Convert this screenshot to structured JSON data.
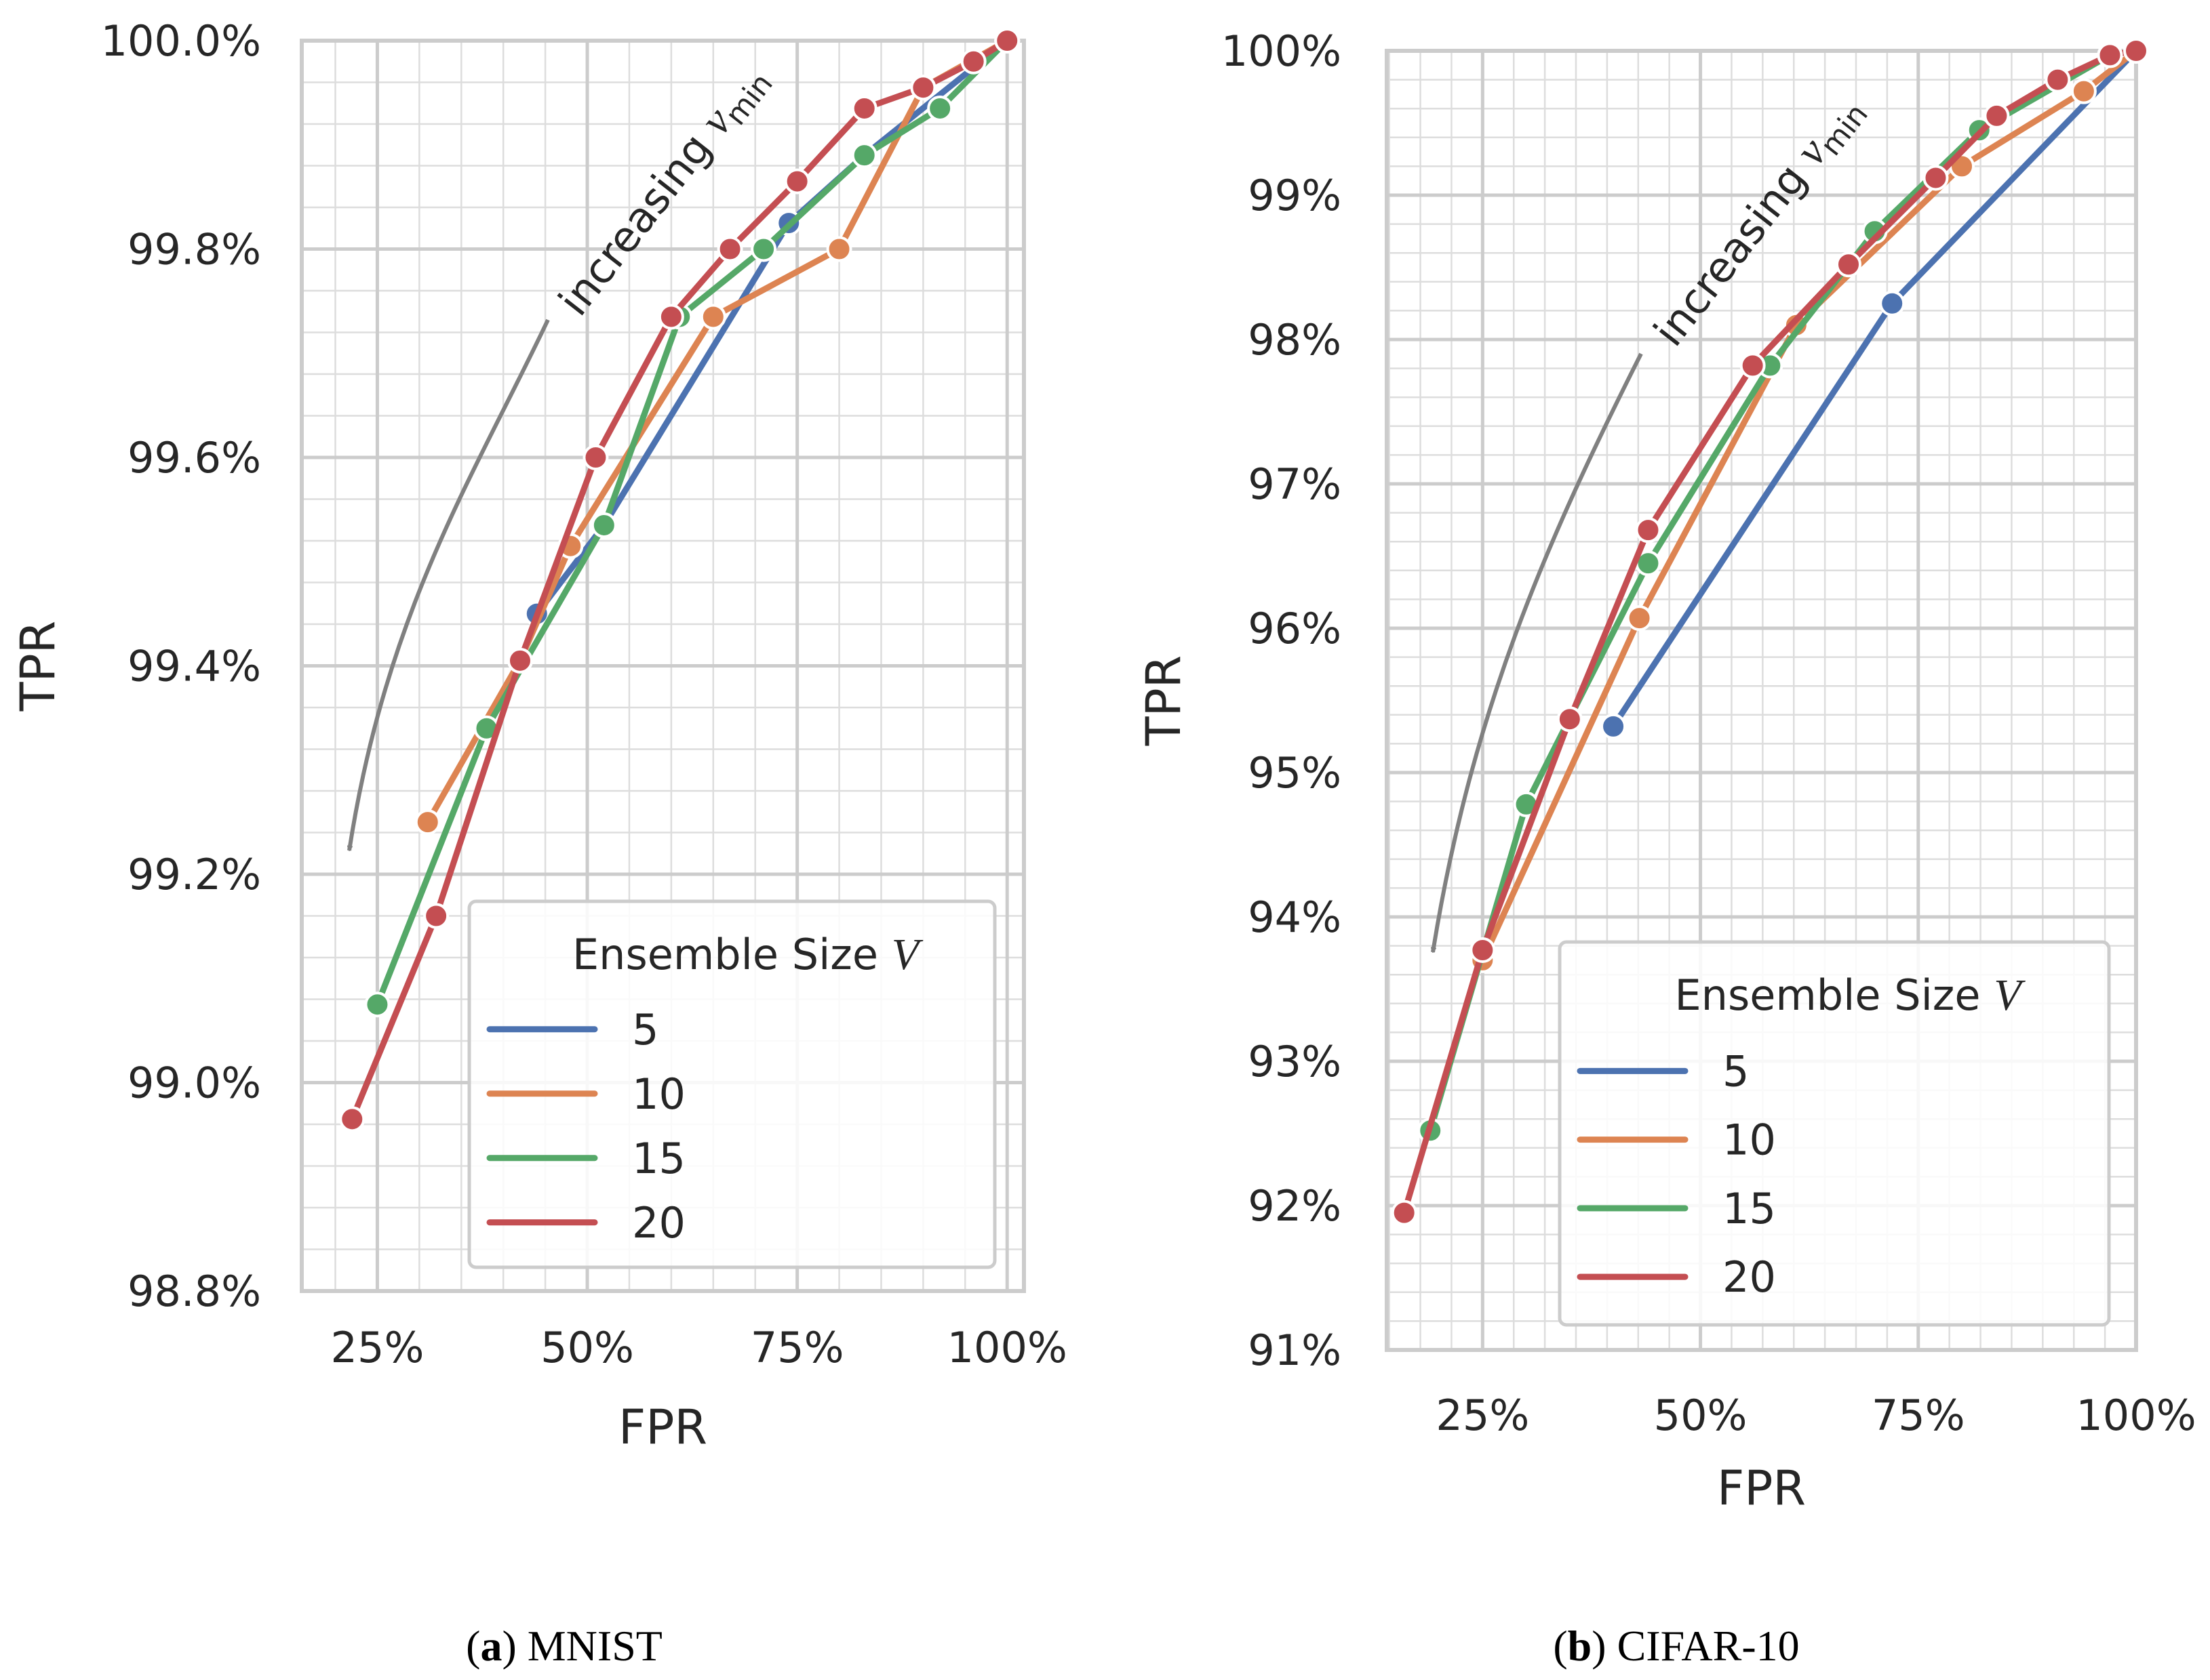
{
  "chart_data": [
    {
      "type": "line",
      "caption_label": "a",
      "caption_text": "MNIST",
      "xlabel": "FPR",
      "ylabel": "TPR",
      "xlim": [
        0.16,
        1.02
      ],
      "ylim": [
        98.8,
        100.0
      ],
      "xticks": [
        0.25,
        0.5,
        0.75,
        1.0
      ],
      "xtick_labels": [
        "25%",
        "50%",
        "75%",
        "100%"
      ],
      "yticks": [
        98.8,
        99.0,
        99.2,
        99.4,
        99.6,
        99.8,
        100.0
      ],
      "ytick_labels": [
        "98.8%",
        "99.0%",
        "99.2%",
        "99.4%",
        "99.6%",
        "99.8%",
        "100.0%"
      ],
      "annotation": {
        "text": "increasing",
        "math_symbol": "v",
        "math_subscript": "min"
      },
      "legend": {
        "title": "Ensemble Size",
        "title_symbol": "V",
        "placement": "lower right"
      },
      "series": [
        {
          "name": "5",
          "color": "#4c72b0",
          "x": [
            0.44,
            0.52,
            0.74,
            0.83,
            1.0
          ],
          "y": [
            99.45,
            99.535,
            99.825,
            99.89,
            100.0
          ]
        },
        {
          "name": "10",
          "color": "#dd8452",
          "x": [
            0.31,
            0.42,
            0.48,
            0.65,
            0.8,
            0.9,
            1.0
          ],
          "y": [
            99.25,
            99.405,
            99.515,
            99.735,
            99.8,
            99.955,
            100.0
          ]
        },
        {
          "name": "15",
          "color": "#55a868",
          "x": [
            0.25,
            0.38,
            0.52,
            0.61,
            0.71,
            0.83,
            0.92,
            1.0
          ],
          "y": [
            99.075,
            99.34,
            99.535,
            99.735,
            99.8,
            99.89,
            99.935,
            100.0
          ]
        },
        {
          "name": "20",
          "color": "#c44e52",
          "x": [
            0.22,
            0.32,
            0.42,
            0.51,
            0.6,
            0.67,
            0.75,
            0.83,
            0.9,
            0.96,
            1.0
          ],
          "y": [
            98.965,
            99.16,
            99.405,
            99.6,
            99.735,
            99.8,
            99.865,
            99.935,
            99.955,
            99.98,
            100.0
          ]
        }
      ]
    },
    {
      "type": "line",
      "caption_label": "b",
      "caption_text": "CIFAR-10",
      "xlabel": "FPR",
      "ylabel": "TPR",
      "xlim": [
        0.14,
        1.0
      ],
      "ylim": [
        91,
        100
      ],
      "xticks": [
        0.25,
        0.5,
        0.75,
        1.0
      ],
      "xtick_labels": [
        "25%",
        "50%",
        "75%",
        "100%"
      ],
      "yticks": [
        91,
        92,
        93,
        94,
        95,
        96,
        97,
        98,
        99,
        100
      ],
      "ytick_labels": [
        "91%",
        "92%",
        "93%",
        "94%",
        "95%",
        "96%",
        "97%",
        "98%",
        "99%",
        "100%"
      ],
      "annotation": {
        "text": "increasing",
        "math_symbol": "v",
        "math_subscript": "min"
      },
      "legend": {
        "title": "Ensemble Size",
        "title_symbol": "V",
        "placement": "lower right"
      },
      "series": [
        {
          "name": "5",
          "color": "#4c72b0",
          "x": [
            0.4,
            0.72,
            1.0
          ],
          "y": [
            95.32,
            98.25,
            100.0
          ]
        },
        {
          "name": "10",
          "color": "#dd8452",
          "x": [
            0.25,
            0.43,
            0.61,
            0.8,
            0.94,
            1.0
          ],
          "y": [
            93.7,
            96.07,
            98.1,
            99.2,
            99.72,
            100.0
          ]
        },
        {
          "name": "15",
          "color": "#55a868",
          "x": [
            0.19,
            0.3,
            0.44,
            0.58,
            0.7,
            0.82,
            0.97
          ],
          "y": [
            92.52,
            94.78,
            96.45,
            97.82,
            98.75,
            99.45,
            99.97
          ]
        },
        {
          "name": "20",
          "color": "#c44e52",
          "x": [
            0.16,
            0.25,
            0.35,
            0.44,
            0.56,
            0.67,
            0.77,
            0.84,
            0.91,
            0.97,
            1.0
          ],
          "y": [
            91.95,
            93.77,
            95.37,
            96.68,
            97.82,
            98.52,
            99.12,
            99.55,
            99.8,
            99.97,
            100.0
          ]
        }
      ]
    }
  ]
}
